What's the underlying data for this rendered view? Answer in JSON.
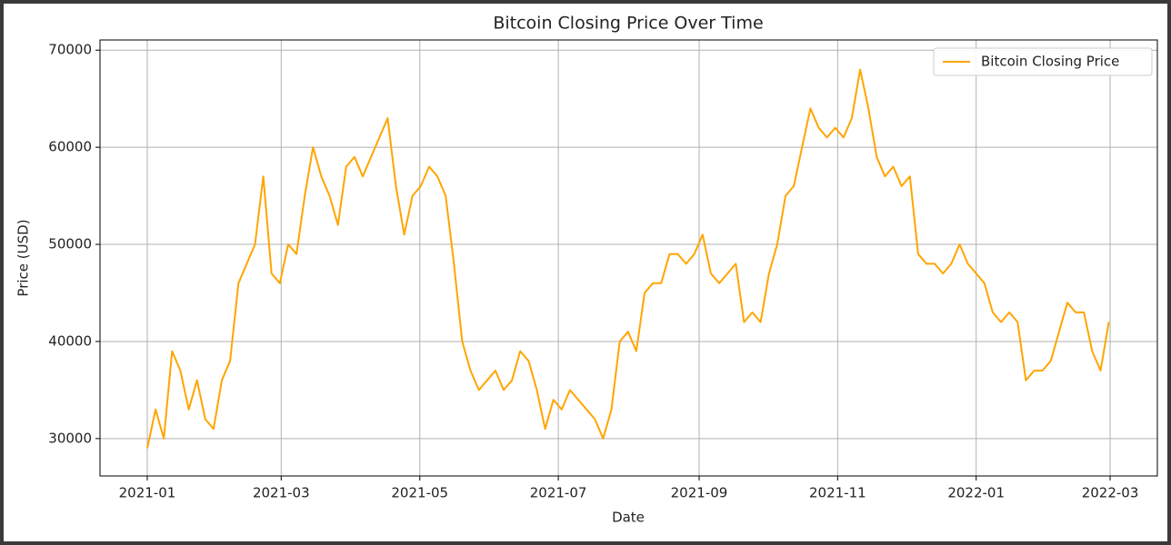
{
  "chart_data": {
    "type": "line",
    "title": "Bitcoin Closing Price Over Time",
    "x_label": "Date",
    "y_label": "Price (USD)",
    "x": [
      2021.0,
      2021.01,
      2021.02,
      2021.03,
      2021.04,
      2021.05,
      2021.06,
      2021.07,
      2021.08,
      2021.09,
      2021.1,
      2021.11,
      2021.12,
      2021.13,
      2021.14,
      2021.15,
      2021.16,
      2021.17,
      2021.18,
      2021.19,
      2021.2,
      2021.21,
      2021.22,
      2021.23,
      2021.24,
      2021.25,
      2021.26,
      2021.27,
      2021.28,
      2021.29,
      2021.3,
      2021.31,
      2021.32,
      2021.33,
      2021.34,
      2021.35,
      2021.36,
      2021.37,
      2021.38,
      2021.39,
      2021.4,
      2021.41,
      2021.42,
      2021.43,
      2021.44,
      2021.45,
      2021.46,
      2021.47,
      2021.48,
      2021.49,
      2021.5,
      2021.51,
      2021.52,
      2021.53,
      2021.54,
      2021.55,
      2021.56,
      2021.57,
      2021.58,
      2021.59,
      2021.6,
      2021.61,
      2021.62,
      2021.63,
      2021.64,
      2021.65,
      2021.66,
      2021.67,
      2021.68,
      2021.69,
      2021.7,
      2021.71,
      2021.72,
      2021.73,
      2021.74,
      2021.75,
      2021.76,
      2021.77,
      2021.78,
      2021.79,
      2021.8,
      2021.81,
      2021.82,
      2021.83,
      2021.84,
      2021.85,
      2021.86,
      2021.87,
      2021.88,
      2021.89,
      2021.9,
      2021.91,
      2021.92,
      2021.93,
      2021.94,
      2021.95,
      2021.96,
      2021.97,
      2021.98,
      2021.99,
      2022.0,
      2022.01,
      2022.02,
      2022.03,
      2022.04,
      2022.05,
      2022.06,
      2022.07,
      2022.08,
      2022.09,
      2022.1,
      2022.11,
      2022.12,
      2022.13,
      2022.14,
      2022.15,
      2022.16
    ],
    "series": [
      {
        "name": "Bitcoin Closing Price",
        "color": "#ffa500",
        "values": [
          29000,
          33000,
          30000,
          39000,
          37000,
          33000,
          36000,
          32000,
          31000,
          36000,
          38000,
          46000,
          48000,
          50000,
          57000,
          47000,
          46000,
          50000,
          49000,
          55000,
          60000,
          57000,
          55000,
          52000,
          58000,
          59000,
          57000,
          59000,
          61000,
          63000,
          56000,
          51000,
          55000,
          56000,
          58000,
          57000,
          55000,
          48000,
          40000,
          37000,
          35000,
          36000,
          37000,
          35000,
          36000,
          39000,
          38000,
          35000,
          31000,
          34000,
          33000,
          35000,
          34000,
          33000,
          32000,
          30000,
          33000,
          40000,
          41000,
          39000,
          45000,
          46000,
          46000,
          49000,
          49000,
          48000,
          49000,
          51000,
          47000,
          46000,
          47000,
          48000,
          42000,
          43000,
          42000,
          47000,
          50000,
          55000,
          56000,
          60000,
          64000,
          62000,
          61000,
          62000,
          61000,
          63000,
          68000,
          64000,
          59000,
          57000,
          58000,
          56000,
          57000,
          49000,
          48000,
          48000,
          47000,
          48000,
          50000,
          48000,
          47000,
          46000,
          43000,
          42000,
          43000,
          42000,
          36000,
          37000,
          37000,
          38000,
          41000,
          44000,
          43000,
          43000,
          39000,
          37000,
          42000
        ]
      }
    ],
    "xlim": [
      2020.943,
      2022.2186
    ],
    "xticks": [
      {
        "value": 2021.0,
        "label": "2021-01"
      },
      {
        "value": 2021.1616,
        "label": "2021-03"
      },
      {
        "value": 2021.3288,
        "label": "2021-05"
      },
      {
        "value": 2021.4959,
        "label": "2021-07"
      },
      {
        "value": 2021.6658,
        "label": "2021-09"
      },
      {
        "value": 2021.8329,
        "label": "2021-11"
      },
      {
        "value": 2022.0,
        "label": "2022-01"
      },
      {
        "value": 2022.1616,
        "label": "2022-03"
      }
    ],
    "ylim": [
      26150,
      71050
    ],
    "yticks": [
      30000,
      40000,
      50000,
      60000,
      70000
    ],
    "grid": true,
    "legend": "upper right"
  }
}
